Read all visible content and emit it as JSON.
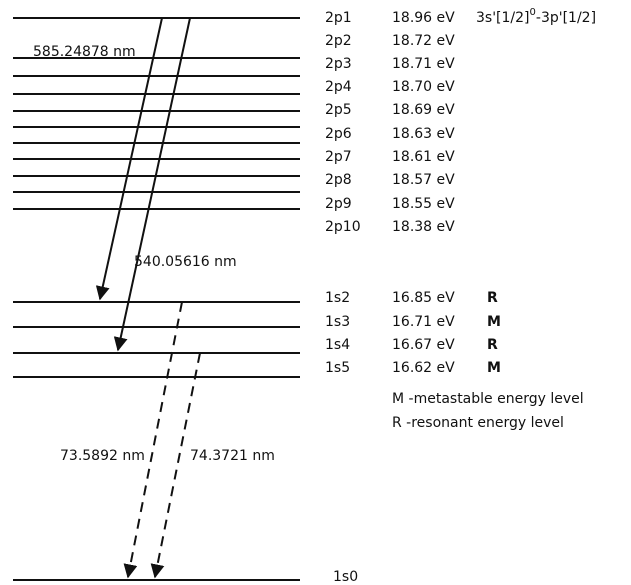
{
  "transition_label": {
    "main": "3s'[1/2]",
    "superscript": "0",
    "tail": "-3p'[1/2]"
  },
  "levels": [
    {
      "name": "2p1",
      "energy": "18.96 eV"
    },
    {
      "name": "2p2",
      "energy": "18.72 eV"
    },
    {
      "name": "2p3",
      "energy": "18.71 eV"
    },
    {
      "name": "2p4",
      "energy": "18.70 eV"
    },
    {
      "name": "2p5",
      "energy": "18.69 eV"
    },
    {
      "name": "2p6",
      "energy": "18.63 eV"
    },
    {
      "name": "2p7",
      "energy": "18.61 eV"
    },
    {
      "name": "2p8",
      "energy": "18.57 eV"
    },
    {
      "name": "2p9",
      "energy": "18.55 eV"
    },
    {
      "name": "2p10",
      "energy": "18.38 eV"
    },
    {
      "name": "1s2",
      "energy": "16.85 eV",
      "type": "R"
    },
    {
      "name": "1s3",
      "energy": "16.71 eV",
      "type": "M"
    },
    {
      "name": "1s4",
      "energy": "16.67 eV",
      "type": "R"
    },
    {
      "name": "1s5",
      "energy": "16.62 eV",
      "type": "M"
    },
    {
      "name": "1s0"
    }
  ],
  "transitions": [
    "585.24878 nm",
    "540.05616 nm",
    "73.5892 nm",
    "74.3721 nm"
  ],
  "legend": [
    "M -metastable energy level",
    "R -resonant energy level"
  ]
}
